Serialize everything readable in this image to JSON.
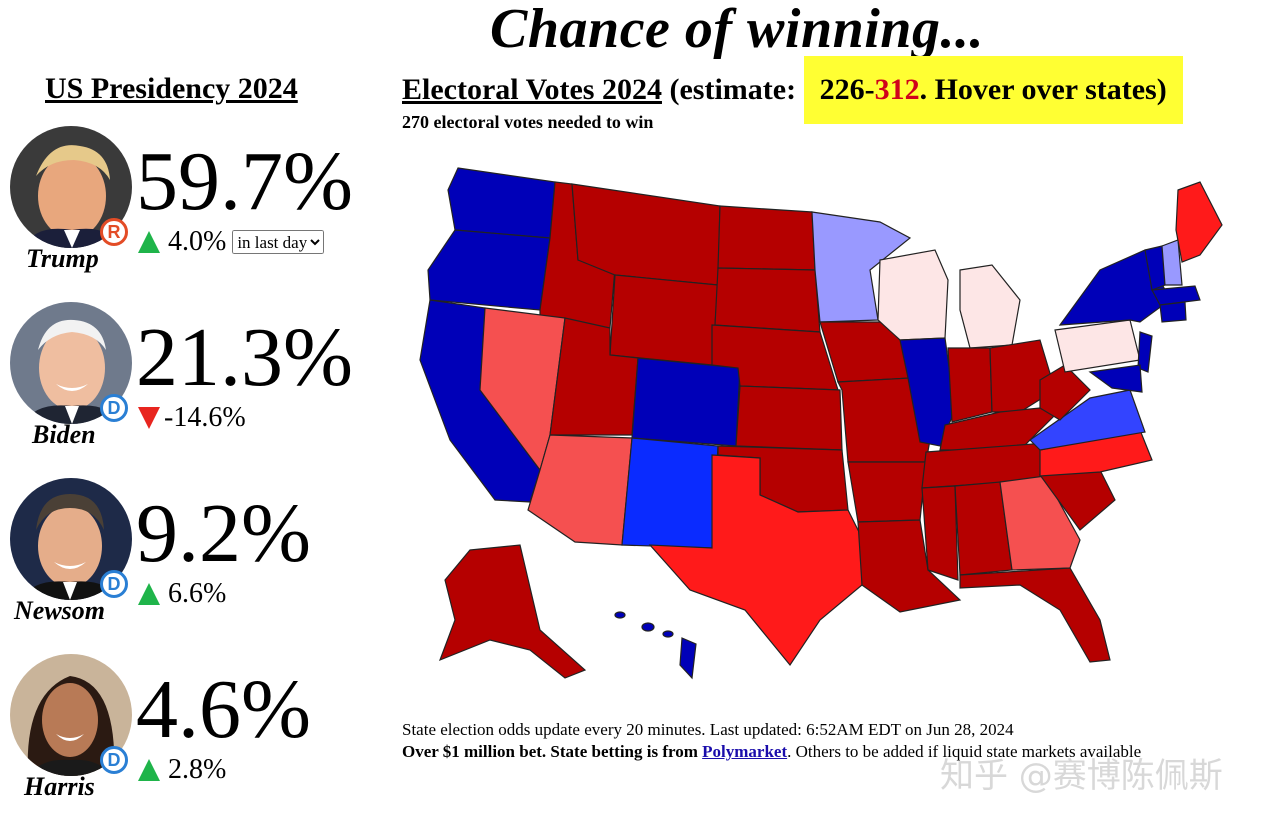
{
  "title": "Chance of winning...",
  "left_heading": "US Presidency 2024",
  "ev": {
    "heading": "Electoral Votes 2024",
    "estimate_prefix": " (estimate: ",
    "low": "226",
    "dash": "-",
    "high": "312",
    "suffix": ". Hover over states)",
    "needed": "270 electoral votes needed to win"
  },
  "candidates": [
    {
      "name": "Trump",
      "party": "R",
      "pct": "59.7%",
      "dir": "up",
      "change": "4.0%"
    },
    {
      "name": "Biden",
      "party": "D",
      "pct": "21.3%",
      "dir": "down",
      "change": "-14.6%"
    },
    {
      "name": "Newsom",
      "party": "D",
      "pct": "9.2%",
      "dir": "up",
      "change": "6.6%"
    },
    {
      "name": "Harris",
      "party": "D",
      "pct": "4.6%",
      "dir": "up",
      "change": "2.8%"
    }
  ],
  "period_select": {
    "selected": "in last day"
  },
  "footer": {
    "line1": "State election odds update every 20 minutes. Last updated: 6:52AM EDT on Jun 28, 2024",
    "line2_bold": "Over $1 million bet. State betting is from ",
    "link": "Polymarket",
    "line2_rest": ". Others to be added if liquid state markets available"
  },
  "watermark": "知乎 @赛博陈佩斯",
  "colors": {
    "safe_red": "#b50000",
    "likely_red": "#ff1a1a",
    "lean_red": "#f55050",
    "safe_blue": "#0000b8",
    "likely_blue": "#0a2bff",
    "lean_blue": "#9999ff",
    "tossup_red": "#fde6e6",
    "highlight": "#ffff33"
  }
}
